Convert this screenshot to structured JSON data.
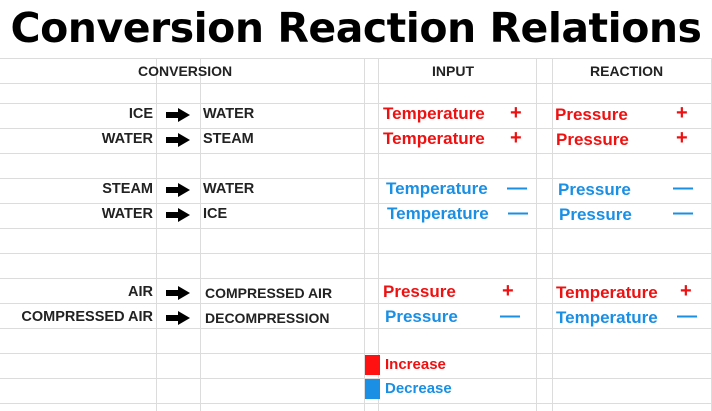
{
  "title": "Conversion Reaction Relations",
  "headers": {
    "conversion": "CONVERSION",
    "input": "INPUT",
    "reaction": "REACTION"
  },
  "rows": [
    {
      "from": "ICE",
      "to": "WATER",
      "input": "Temperature",
      "input_sign": "+",
      "reaction": "Pressure",
      "reaction_sign": "+",
      "kind": "increase"
    },
    {
      "from": "WATER",
      "to": "STEAM",
      "input": "Temperature",
      "input_sign": "+",
      "reaction": "Pressure",
      "reaction_sign": "+",
      "kind": "increase"
    },
    {
      "from": "STEAM",
      "to": "WATER",
      "input": "Temperature",
      "input_sign": "—",
      "reaction": "Pressure",
      "reaction_sign": "—",
      "kind": "decrease"
    },
    {
      "from": "WATER",
      "to": "ICE",
      "input": "Temperature",
      "input_sign": "—",
      "reaction": "Pressure",
      "reaction_sign": "—",
      "kind": "decrease"
    },
    {
      "from": "AIR",
      "to": "COMPRESSED AIR",
      "input": "Pressure",
      "input_sign": "+",
      "reaction": "Temperature",
      "reaction_sign": "+",
      "kind": "increase"
    },
    {
      "from": "COMPRESSED AIR",
      "to": "DECOMPRESSION",
      "input": "Pressure",
      "input_sign": "—",
      "reaction": "Temperature",
      "reaction_sign": "—",
      "kind": "decrease"
    }
  ],
  "legend": [
    {
      "label": "Increase",
      "color": "#ff1111"
    },
    {
      "label": "Decrease",
      "color": "#1a8fe3"
    }
  ],
  "colors": {
    "increase": "#ee1111",
    "decrease": "#1a8fe3"
  },
  "icons": {
    "arrow": "right-arrow-icon"
  }
}
